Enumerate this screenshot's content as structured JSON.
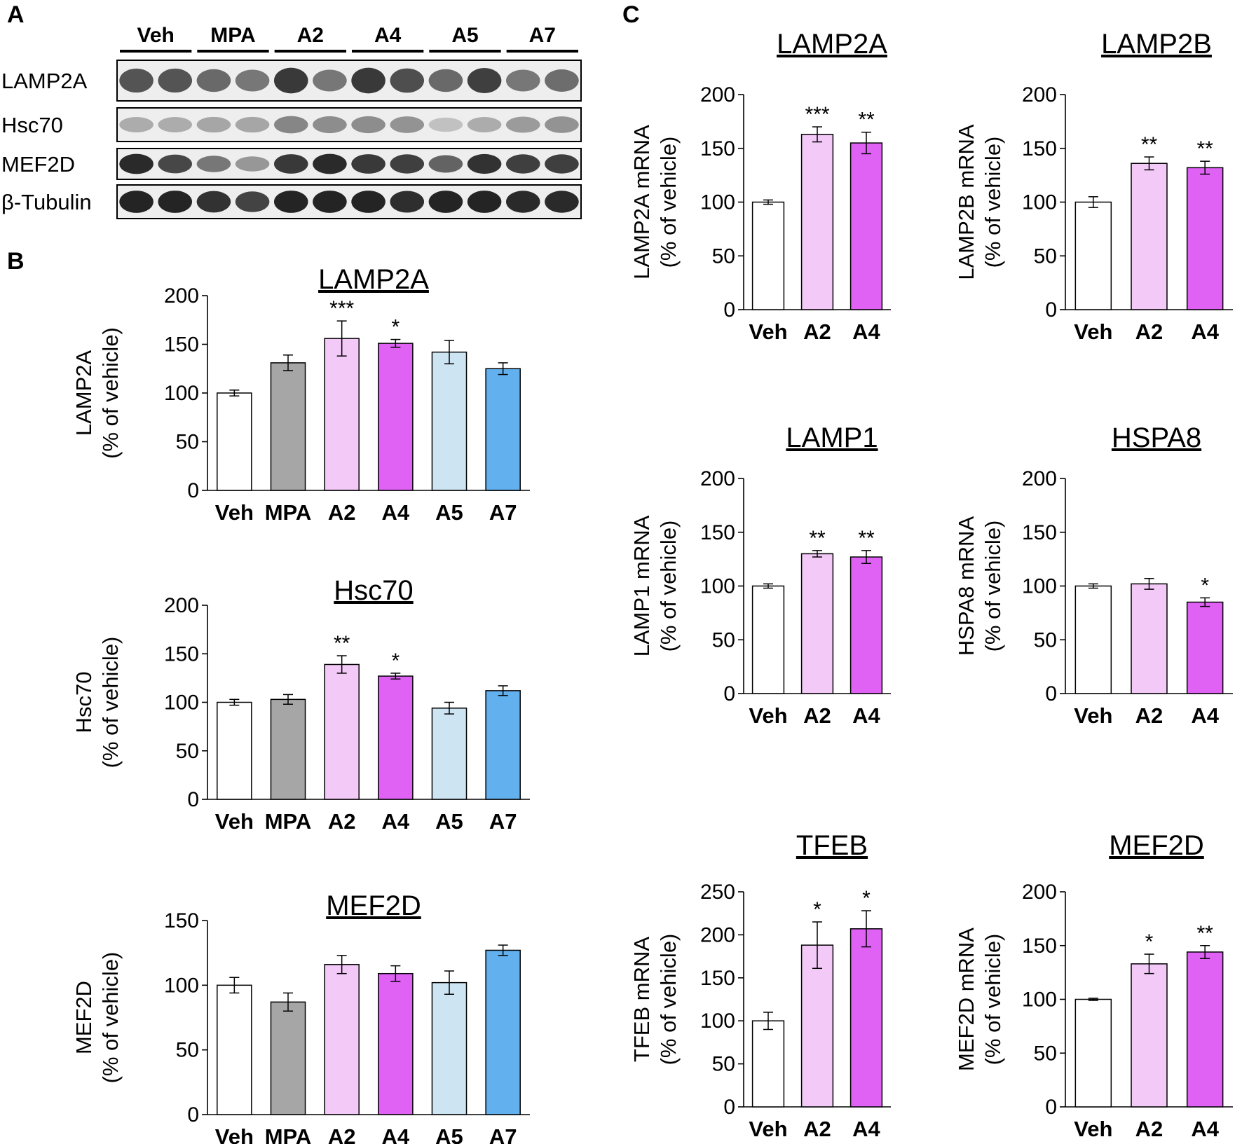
{
  "colors": {
    "Veh": "#ffffff",
    "MPA": "#a6a6a6",
    "A2": "#f2c9f7",
    "A4": "#df62f5",
    "A5": "#cde4f3",
    "A7": "#62b0ee"
  },
  "blot": {
    "panel": "A",
    "lanes": [
      "Veh",
      "MPA",
      "A2",
      "A4",
      "A5",
      "A7"
    ],
    "proteins": [
      "LAMP2A",
      "Hsc70",
      "MEF2D",
      "β-Tubulin"
    ],
    "band_intensity": {
      "LAMP2A": [
        0.72,
        0.72,
        0.62,
        0.55,
        0.85,
        0.55,
        0.85,
        0.75,
        0.62,
        0.82,
        0.55,
        0.6
      ],
      "Hsc70": [
        0.3,
        0.3,
        0.33,
        0.33,
        0.48,
        0.45,
        0.45,
        0.42,
        0.2,
        0.3,
        0.38,
        0.42
      ],
      "MEF2D": [
        0.92,
        0.78,
        0.55,
        0.4,
        0.85,
        0.92,
        0.85,
        0.82,
        0.65,
        0.88,
        0.82,
        0.82
      ],
      "β-Tubulin": [
        0.95,
        0.95,
        0.88,
        0.8,
        0.95,
        0.95,
        0.95,
        0.9,
        0.95,
        0.95,
        0.92,
        0.92
      ]
    }
  },
  "chart_data": [
    {
      "type": "bar",
      "panel": "B",
      "title": "LAMP2A",
      "ylabel": [
        "LAMP2A",
        "(% of vehicle)"
      ],
      "categories": [
        "Veh",
        "MPA",
        "A2",
        "A4",
        "A5",
        "A7"
      ],
      "values": [
        100,
        131,
        156,
        151,
        142,
        125
      ],
      "errors": [
        3,
        8,
        18,
        4,
        12,
        6
      ],
      "significance": [
        "",
        "",
        "***",
        "*",
        "",
        ""
      ],
      "ylim": [
        0,
        200
      ],
      "yticks": [
        0,
        50,
        100,
        150,
        200
      ],
      "grid": false
    },
    {
      "type": "bar",
      "title": "Hsc70",
      "ylabel": [
        "Hsc70",
        "(% of vehicle)"
      ],
      "categories": [
        "Veh",
        "MPA",
        "A2",
        "A4",
        "A5",
        "A7"
      ],
      "values": [
        100,
        103,
        139,
        127,
        94,
        112
      ],
      "errors": [
        3,
        5,
        9,
        3,
        6,
        5
      ],
      "significance": [
        "",
        "",
        "**",
        "*",
        "",
        ""
      ],
      "ylim": [
        0,
        200
      ],
      "yticks": [
        0,
        50,
        100,
        150,
        200
      ],
      "grid": false
    },
    {
      "type": "bar",
      "title": "MEF2D",
      "ylabel": [
        "MEF2D",
        "(% of vehicle)"
      ],
      "categories": [
        "Veh",
        "MPA",
        "A2",
        "A4",
        "A5",
        "A7"
      ],
      "values": [
        100,
        87,
        116,
        109,
        102,
        127
      ],
      "errors": [
        6,
        7,
        7,
        6,
        9,
        4
      ],
      "significance": [
        "",
        "",
        "",
        "",
        "",
        ""
      ],
      "ylim": [
        0,
        150
      ],
      "yticks": [
        0,
        50,
        100,
        150
      ],
      "grid": false
    },
    {
      "type": "bar",
      "panel": "C",
      "title": "LAMP2A",
      "ylabel": [
        "LAMP2A mRNA",
        "(% of vehicle)"
      ],
      "categories": [
        "Veh",
        "A2",
        "A4"
      ],
      "values": [
        100,
        163,
        155
      ],
      "errors": [
        2,
        7,
        10
      ],
      "significance": [
        "",
        "***",
        "**"
      ],
      "ylim": [
        0,
        200
      ],
      "yticks": [
        0,
        50,
        100,
        150,
        200
      ],
      "grid": false
    },
    {
      "type": "bar",
      "title": "LAMP2B",
      "ylabel": [
        "LAMP2B mRNA",
        "(% of vehicle)"
      ],
      "categories": [
        "Veh",
        "A2",
        "A4"
      ],
      "values": [
        100,
        136,
        132
      ],
      "errors": [
        5,
        6,
        6
      ],
      "significance": [
        "",
        "**",
        "**"
      ],
      "ylim": [
        0,
        200
      ],
      "yticks": [
        0,
        50,
        100,
        150,
        200
      ],
      "grid": false
    },
    {
      "type": "bar",
      "title": "LAMP1",
      "ylabel": [
        "LAMP1 mRNA",
        "(% of vehicle)"
      ],
      "categories": [
        "Veh",
        "A2",
        "A4"
      ],
      "values": [
        100,
        130,
        127
      ],
      "errors": [
        2,
        3,
        6
      ],
      "significance": [
        "",
        "**",
        "**"
      ],
      "ylim": [
        0,
        200
      ],
      "yticks": [
        0,
        50,
        100,
        150,
        200
      ],
      "grid": false
    },
    {
      "type": "bar",
      "title": "HSPA8",
      "ylabel": [
        "HSPA8 mRNA",
        "(% of vehicle)"
      ],
      "categories": [
        "Veh",
        "A2",
        "A4"
      ],
      "values": [
        100,
        102,
        85
      ],
      "errors": [
        2,
        5,
        4
      ],
      "significance": [
        "",
        "",
        "*"
      ],
      "ylim": [
        0,
        200
      ],
      "yticks": [
        0,
        50,
        100,
        150,
        200
      ],
      "grid": false
    },
    {
      "type": "bar",
      "title": "TFEB",
      "ylabel": [
        "TFEB mRNA",
        "(% of vehicle)"
      ],
      "categories": [
        "Veh",
        "A2",
        "A4"
      ],
      "values": [
        100,
        188,
        207
      ],
      "errors": [
        10,
        27,
        21
      ],
      "significance": [
        "",
        "*",
        "*"
      ],
      "ylim": [
        0,
        250
      ],
      "yticks": [
        0,
        50,
        100,
        150,
        200,
        250
      ],
      "grid": false
    },
    {
      "type": "bar",
      "title": "MEF2D",
      "ylabel": [
        "MEF2D mRNA",
        "(% of vehicle)"
      ],
      "categories": [
        "Veh",
        "A2",
        "A4"
      ],
      "values": [
        100,
        133,
        144
      ],
      "errors": [
        1,
        9,
        6
      ],
      "significance": [
        "",
        "*",
        "**"
      ],
      "ylim": [
        0,
        200
      ],
      "yticks": [
        0,
        50,
        100,
        150,
        200
      ],
      "grid": false
    }
  ]
}
